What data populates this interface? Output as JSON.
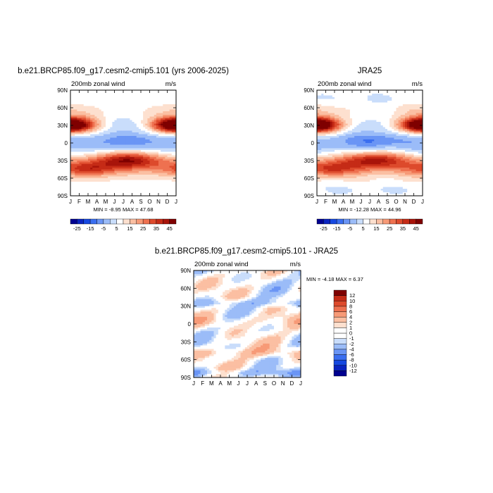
{
  "chart_data": [
    {
      "type": "heatmap",
      "title": "b.e21.BRCP85.f09_g17.cesm2-cmip5.101 (yrs 2006-2025)",
      "subtitle": "200mb zonal wind",
      "units": "m/s",
      "x_ticks": [
        "J",
        "F",
        "M",
        "A",
        "M",
        "J",
        "J",
        "A",
        "S",
        "O",
        "N",
        "D",
        "J"
      ],
      "y_ticks": [
        "90N",
        "60N",
        "30N",
        "0",
        "30S",
        "60S",
        "90S"
      ],
      "stats": {
        "min": "-8.95",
        "max": "47.68"
      },
      "stats_text": "MIN =   -8.95  MAX =   47.68",
      "colorbar_labels": [
        "-25",
        "-15",
        "-5",
        "5",
        "15",
        "25",
        "35",
        "45"
      ],
      "colorbar_levels": [
        -25,
        -20,
        -15,
        -10,
        -5,
        0,
        5,
        10,
        15,
        20,
        25,
        30,
        35,
        40,
        45
      ],
      "features": [
        {
          "lat": 30,
          "month": 0.5,
          "value": 45,
          "wlat": 13,
          "wmon": 2.5
        },
        {
          "lat": 30,
          "month": 11.5,
          "value": 38,
          "wlat": 12,
          "wmon": 2.2
        },
        {
          "lat": -28,
          "month": 6.5,
          "value": 48,
          "wlat": 14,
          "wmon": 3.5
        },
        {
          "lat": -45,
          "month": 2.0,
          "value": 30,
          "wlat": 12,
          "wmon": 3.0
        },
        {
          "lat": 5,
          "month": 6.5,
          "value": -8,
          "wlat": 12,
          "wmon": 2.5
        }
      ]
    },
    {
      "type": "heatmap",
      "title": "JRA25",
      "subtitle": "200mb zonal wind",
      "units": "m/s",
      "x_ticks": [
        "J",
        "F",
        "M",
        "A",
        "M",
        "J",
        "J",
        "A",
        "S",
        "O",
        "N",
        "D",
        "J"
      ],
      "y_ticks": [
        "90N",
        "60N",
        "30N",
        "0",
        "30S",
        "60S",
        "90S"
      ],
      "stats": {
        "min": "-12.28",
        "max": "44.96"
      },
      "stats_text": "MIN =  -12.28  MAX =   44.96",
      "colorbar_labels": [
        "-25",
        "-15",
        "-5",
        "5",
        "15",
        "25",
        "35",
        "45"
      ],
      "colorbar_levels": [
        -25,
        -20,
        -15,
        -10,
        -5,
        0,
        5,
        10,
        15,
        20,
        25,
        30,
        35,
        40,
        45
      ],
      "features": [
        {
          "lat": 30,
          "month": 0.5,
          "value": 42,
          "wlat": 13,
          "wmon": 2.5
        },
        {
          "lat": 30,
          "month": 11.5,
          "value": 36,
          "wlat": 12,
          "wmon": 2.2
        },
        {
          "lat": -28,
          "month": 6.5,
          "value": 44,
          "wlat": 14,
          "wmon": 3.5
        },
        {
          "lat": -45,
          "month": 1.5,
          "value": 28,
          "wlat": 12,
          "wmon": 3.0
        },
        {
          "lat": 5,
          "month": 6.5,
          "value": -12,
          "wlat": 12,
          "wmon": 2.5
        }
      ]
    },
    {
      "type": "heatmap",
      "title": "b.e21.BRCP85.f09_g17.cesm2-cmip5.101 - JRA25",
      "subtitle": "200mb zonal wind",
      "units": "m/s",
      "x_ticks": [
        "J",
        "F",
        "M",
        "A",
        "M",
        "J",
        "J",
        "A",
        "S",
        "O",
        "N",
        "D",
        "J"
      ],
      "y_ticks": [
        "90N",
        "60N",
        "30N",
        "0",
        "30S",
        "60S",
        "90S"
      ],
      "stats": {
        "min": "-4.18",
        "max": "6.37"
      },
      "stats_text": "MIN =   -4.18  MAX =    6.37",
      "colorbar_labels": [
        "12",
        "10",
        "8",
        "6",
        "4",
        "2",
        "1",
        "0",
        "-1",
        "-2",
        "-4",
        "-6",
        "-8",
        "-10",
        "-12"
      ],
      "colorbar_levels": [
        -12,
        -10,
        -8,
        -6,
        -4,
        -2,
        -1,
        0,
        1,
        2,
        4,
        6,
        8,
        10,
        12
      ],
      "features": []
    }
  ],
  "colors": {
    "blue_scale": [
      "#000090",
      "#0a24c0",
      "#1648e0",
      "#3a6ef0",
      "#6a95f5",
      "#9bbcf8",
      "#c9ddfb"
    ],
    "white": "#ffffff",
    "red_scale": [
      "#fde0cf",
      "#fbbfa2",
      "#f79a77",
      "#ee7150",
      "#dd4a2c",
      "#c52b16",
      "#a8140a",
      "#7f0000"
    ]
  }
}
